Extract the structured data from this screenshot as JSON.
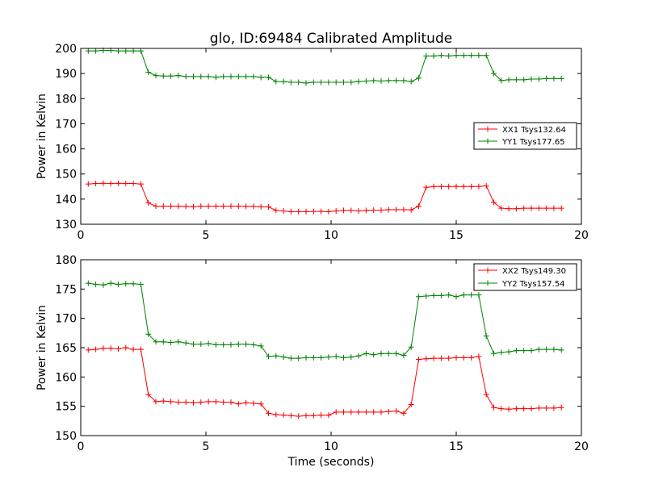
{
  "chart_data": [
    {
      "type": "line",
      "title": "glo, ID:69484 Calibrated Amplitude",
      "xlabel": "",
      "ylabel": "Power in Kelvin",
      "xlim": [
        0,
        20
      ],
      "ylim": [
        130,
        200
      ],
      "xticks": [
        0,
        5,
        10,
        15,
        20
      ],
      "yticks": [
        130,
        140,
        150,
        160,
        170,
        180,
        190,
        200
      ],
      "legend_position": "center-right",
      "x": [
        0.3,
        0.6,
        0.9,
        1.2,
        1.5,
        1.8,
        2.1,
        2.4,
        2.7,
        3.0,
        3.3,
        3.6,
        3.9,
        4.2,
        4.5,
        4.8,
        5.1,
        5.4,
        5.7,
        6.0,
        6.3,
        6.6,
        6.9,
        7.2,
        7.5,
        7.8,
        8.1,
        8.4,
        8.7,
        9.0,
        9.3,
        9.6,
        9.9,
        10.2,
        10.5,
        10.8,
        11.1,
        11.4,
        11.7,
        12.0,
        12.3,
        12.6,
        12.9,
        13.2,
        13.5,
        13.8,
        14.1,
        14.4,
        14.7,
        15.0,
        15.3,
        15.6,
        15.9,
        16.2,
        16.5,
        16.8,
        17.1,
        17.4,
        17.7,
        18.0,
        18.3,
        18.6,
        18.9,
        19.2
      ],
      "series": [
        {
          "name": "XX1 Tsys132.64",
          "color": "#ff0000",
          "values": [
            146.0,
            146.2,
            146.3,
            146.2,
            146.3,
            146.2,
            146.2,
            146.0,
            138.5,
            137.2,
            137.2,
            137.2,
            137.2,
            137.1,
            137.0,
            137.2,
            137.2,
            137.2,
            137.2,
            137.2,
            137.2,
            137.1,
            137.1,
            137.0,
            136.9,
            135.5,
            135.3,
            135.0,
            135.0,
            135.0,
            135.1,
            135.1,
            135.0,
            135.3,
            135.5,
            135.5,
            135.3,
            135.5,
            135.6,
            135.6,
            135.8,
            135.8,
            135.8,
            135.7,
            137.2,
            144.7,
            145.0,
            145.0,
            145.0,
            145.0,
            145.0,
            145.0,
            145.0,
            145.3,
            138.7,
            136.4,
            136.2,
            136.2,
            136.4,
            136.4,
            136.4,
            136.4,
            136.4,
            136.4
          ]
        },
        {
          "name": "YY1 Tsys177.65",
          "color": "#008000",
          "values": [
            199.0,
            199.0,
            199.2,
            199.2,
            199.0,
            199.0,
            199.0,
            199.0,
            190.5,
            189.2,
            189.0,
            189.0,
            189.2,
            188.8,
            188.8,
            188.8,
            188.8,
            188.5,
            188.8,
            188.8,
            188.8,
            188.8,
            188.8,
            188.5,
            188.5,
            186.8,
            186.8,
            186.5,
            186.5,
            186.2,
            186.5,
            186.5,
            186.5,
            186.5,
            186.5,
            186.5,
            186.8,
            187.0,
            187.2,
            187.0,
            187.2,
            187.2,
            187.2,
            186.8,
            188.2,
            197.0,
            197.0,
            197.2,
            197.0,
            197.2,
            197.2,
            197.2,
            197.2,
            197.2,
            190.0,
            187.2,
            187.5,
            187.5,
            187.5,
            187.8,
            187.8,
            188.0,
            188.0,
            188.0
          ]
        }
      ]
    },
    {
      "type": "line",
      "title": "",
      "xlabel": "Time (seconds)",
      "ylabel": "Power in Kelvin",
      "xlim": [
        0,
        20
      ],
      "ylim": [
        150,
        180
      ],
      "xticks": [
        0,
        5,
        10,
        15,
        20
      ],
      "yticks": [
        150,
        155,
        160,
        165,
        170,
        175,
        180
      ],
      "legend_position": "top-right",
      "x": [
        0.3,
        0.6,
        0.9,
        1.2,
        1.5,
        1.8,
        2.1,
        2.4,
        2.7,
        3.0,
        3.3,
        3.6,
        3.9,
        4.2,
        4.5,
        4.8,
        5.1,
        5.4,
        5.7,
        6.0,
        6.3,
        6.6,
        6.9,
        7.2,
        7.5,
        7.8,
        8.1,
        8.4,
        8.7,
        9.0,
        9.3,
        9.6,
        9.9,
        10.2,
        10.5,
        10.8,
        11.1,
        11.4,
        11.7,
        12.0,
        12.3,
        12.6,
        12.9,
        13.2,
        13.5,
        13.8,
        14.1,
        14.4,
        14.7,
        15.0,
        15.3,
        15.6,
        15.9,
        16.2,
        16.5,
        16.8,
        17.1,
        17.4,
        17.7,
        18.0,
        18.3,
        18.6,
        18.9,
        19.2
      ],
      "series": [
        {
          "name": "XX2 Tsys149.30",
          "color": "#ff0000",
          "values": [
            164.6,
            164.7,
            164.9,
            164.9,
            164.8,
            165.0,
            164.7,
            164.7,
            157.0,
            155.8,
            155.9,
            155.8,
            155.7,
            155.7,
            155.6,
            155.7,
            155.8,
            155.8,
            155.7,
            155.7,
            155.4,
            155.6,
            155.5,
            155.4,
            153.8,
            153.6,
            153.5,
            153.4,
            153.3,
            153.4,
            153.4,
            153.5,
            153.5,
            154.0,
            154.0,
            154.0,
            154.0,
            154.0,
            154.0,
            154.0,
            154.1,
            154.2,
            153.8,
            155.3,
            163.0,
            163.1,
            163.2,
            163.2,
            163.2,
            163.3,
            163.3,
            163.3,
            163.5,
            157.0,
            154.8,
            154.6,
            154.5,
            154.6,
            154.6,
            154.6,
            154.7,
            154.7,
            154.7,
            154.8
          ]
        },
        {
          "name": "YY2 Tsys157.54",
          "color": "#008000",
          "values": [
            176.0,
            175.8,
            175.7,
            176.0,
            175.8,
            175.9,
            175.9,
            175.8,
            167.3,
            166.0,
            166.0,
            165.9,
            166.0,
            165.8,
            165.6,
            165.6,
            165.7,
            165.5,
            165.5,
            165.5,
            165.6,
            165.6,
            165.5,
            165.3,
            163.5,
            163.6,
            163.4,
            163.2,
            163.2,
            163.3,
            163.3,
            163.3,
            163.4,
            163.5,
            163.3,
            163.4,
            163.6,
            164.0,
            163.8,
            164.0,
            164.0,
            164.0,
            163.7,
            165.1,
            173.7,
            173.8,
            173.9,
            173.9,
            174.0,
            173.7,
            174.0,
            174.0,
            174.0,
            167.0,
            164.0,
            164.2,
            164.3,
            164.5,
            164.5,
            164.5,
            164.7,
            164.7,
            164.7,
            164.6
          ]
        }
      ]
    }
  ]
}
